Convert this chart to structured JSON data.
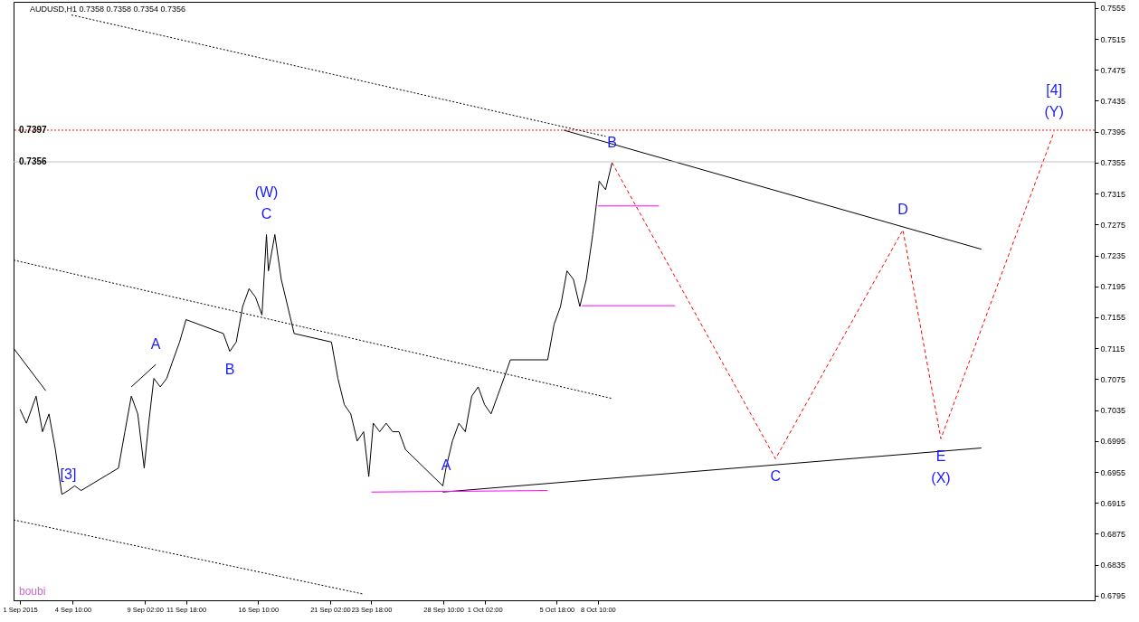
{
  "chart_data": {
    "type": "line",
    "title": "AUDUSD,H1  0.7358 0.7358 0.7354 0.7356",
    "xlim": [
      "2015-08-31T14:00",
      "2015-11-09T14:00"
    ],
    "xticks": [
      {
        "value": "2015-09-01T00:00",
        "label": "1 Sep 2015"
      },
      {
        "value": "2015-09-04T10:00",
        "label": "4 Sep 10:00"
      },
      {
        "value": "2015-09-09T02:00",
        "label": "9 Sep 02:00"
      },
      {
        "value": "2015-09-11T18:00",
        "label": "11 Sep 18:00"
      },
      {
        "value": "2015-09-16T10:00",
        "label": "16 Sep 10:00"
      },
      {
        "value": "2015-09-21T02:00",
        "label": "21 Sep 02:00"
      },
      {
        "value": "2015-09-23T18:00",
        "label": "23 Sep 18:00"
      },
      {
        "value": "2015-09-28T10:00",
        "label": "28 Sep 10:00"
      },
      {
        "value": "2015-10-01T02:00",
        "label": "1 Oct 02:00"
      },
      {
        "value": "2015-10-05T18:00",
        "label": "5 Oct 18:00"
      },
      {
        "value": "2015-10-08T10:00",
        "label": "8 Oct 10:00"
      }
    ],
    "ylim": [
      0.6789,
      0.7563
    ],
    "yticks": [
      0.6795,
      0.6835,
      0.6875,
      0.6915,
      0.6955,
      0.6995,
      0.7035,
      0.7075,
      0.7115,
      0.7155,
      0.7195,
      0.7235,
      0.7275,
      0.7315,
      0.7355,
      0.7395,
      0.7435,
      0.7475,
      0.7515,
      0.7555
    ],
    "grid": false,
    "marker": "none",
    "series": [
      {
        "color": "#000000",
        "line_style": "solid",
        "x": [
          "2015-09-01T00:00",
          "2015-09-01T10:00",
          "2015-09-02T01:00",
          "2015-09-02T11:00",
          "2015-09-02T21:00",
          "2015-09-03T07:00",
          "2015-09-03T17:00",
          "2015-09-04T03:00",
          "2015-09-04T13:00",
          "2015-09-04T23:00",
          "2015-09-07T09:00",
          "2015-09-07T19:00",
          "2015-09-08T05:00",
          "2015-09-08T15:00",
          "2015-09-09T01:00",
          "2015-09-09T08:00",
          "2015-09-09T16:00",
          "2015-09-10T02:00",
          "2015-09-10T12:00",
          "2015-09-10T22:00",
          "2015-09-11T08:00",
          "2015-09-11T18:00",
          "2015-09-14T04:00",
          "2015-09-14T14:00",
          "2015-09-15T00:00",
          "2015-09-15T10:00",
          "2015-09-15T20:00",
          "2015-09-16T06:00",
          "2015-09-16T16:00",
          "2015-09-16T23:00",
          "2015-09-17T02:00",
          "2015-09-17T12:00",
          "2015-09-17T22:00",
          "2015-09-18T08:00",
          "2015-09-18T18:00",
          "2015-09-21T04:00",
          "2015-09-21T14:00",
          "2015-09-22T00:00",
          "2015-09-22T10:00",
          "2015-09-22T20:00",
          "2015-09-23T06:00",
          "2015-09-23T14:00",
          "2015-09-23T21:00",
          "2015-09-24T07:00",
          "2015-09-24T17:00",
          "2015-09-25T03:00",
          "2015-09-25T13:00",
          "2015-09-25T23:00",
          "2015-09-28T09:00",
          "2015-09-28T14:00",
          "2015-09-29T00:00",
          "2015-09-29T10:00",
          "2015-09-29T20:00",
          "2015-09-30T06:00",
          "2015-09-30T16:00",
          "2015-10-01T02:00",
          "2015-10-01T12:00",
          "2015-10-01T22:00",
          "2015-10-02T08:00",
          "2015-10-02T18:00",
          "2015-10-05T04:00",
          "2015-10-05T14:00",
          "2015-10-06T00:00",
          "2015-10-06T10:00",
          "2015-10-06T20:00",
          "2015-10-07T06:00",
          "2015-10-07T16:00",
          "2015-10-08T02:00",
          "2015-10-08T12:00",
          "2015-10-08T22:00",
          "2015-10-09T08:00"
        ],
        "values": [
          0.7036,
          0.7018,
          0.7053,
          0.7007,
          0.703,
          0.6984,
          0.6926,
          0.6931,
          0.6937,
          0.6931,
          0.696,
          0.7007,
          0.7053,
          0.703,
          0.696,
          0.7018,
          0.7076,
          0.7065,
          0.7076,
          0.71,
          0.7123,
          0.7152,
          0.7134,
          0.7111,
          0.7123,
          0.7169,
          0.7192,
          0.7181,
          0.7158,
          0.7262,
          0.7215,
          0.7262,
          0.7204,
          0.7169,
          0.7134,
          0.7123,
          0.7076,
          0.7042,
          0.703,
          0.6995,
          0.7007,
          0.6949,
          0.7018,
          0.7007,
          0.7018,
          0.7007,
          0.7007,
          0.6984,
          0.6937,
          0.696,
          0.6995,
          0.7018,
          0.7007,
          0.7053,
          0.7065,
          0.7042,
          0.703,
          0.7053,
          0.7076,
          0.71,
          0.71,
          0.7146,
          0.7169,
          0.7215,
          0.7204,
          0.7169,
          0.7204,
          0.7262,
          0.7331,
          0.732,
          0.7355
        ]
      },
      {
        "color": "#ff0000",
        "line_style": "dashed",
        "x": [
          "2015-10-09T08:00",
          "2015-10-19T22:00",
          "2015-10-28T04:00",
          "2015-10-30T15:00",
          "2015-11-06T23:00"
        ],
        "values": [
          0.7355,
          0.6972,
          0.7268,
          0.6998,
          0.7395
        ]
      },
      {
        "color": "#000000",
        "line_style": "solid",
        "x": [
          "2015-10-06T05:00",
          "2015-11-02T06:00"
        ],
        "values": [
          0.7397,
          0.7243
        ]
      },
      {
        "color": "#000000",
        "line_style": "solid",
        "x": [
          "2015-09-28T09:00",
          "2015-11-02T06:00"
        ],
        "values": [
          0.6929,
          0.6986
        ]
      },
      {
        "color": "#000000",
        "line_style": "dotted",
        "x": [
          "2015-09-04T08:00",
          "2015-10-08T22:00"
        ],
        "values": [
          0.7546,
          0.7389
        ]
      },
      {
        "color": "#000000",
        "line_style": "dotted",
        "x": [
          "2015-08-31T14:00",
          "2015-10-09T08:00"
        ],
        "values": [
          0.7229,
          0.705
        ]
      },
      {
        "color": "#000000",
        "line_style": "dotted",
        "x": [
          "2015-08-31T14:00",
          "2015-09-23T06:00"
        ],
        "values": [
          0.6893,
          0.6797
        ]
      },
      {
        "color": "#000000",
        "line_style": "solid",
        "x": [
          "2015-08-31T14:00",
          "2015-09-02T16:00"
        ],
        "values": [
          0.7115,
          0.706
        ]
      },
      {
        "color": "#000000",
        "line_style": "solid",
        "x": [
          "2015-09-08T05:00",
          "2015-09-09T19:00"
        ],
        "values": [
          0.7065,
          0.7094
        ]
      },
      {
        "color": "#ff00ff",
        "line_style": "solid",
        "x": [
          "2015-09-23T18:00",
          "2015-10-05T04:00"
        ],
        "values": [
          0.6929,
          0.6931
        ]
      },
      {
        "color": "#ff00ff",
        "line_style": "solid",
        "x": [
          "2015-10-07T09:00",
          "2015-10-13T10:00"
        ],
        "values": [
          0.717,
          0.717
        ]
      },
      {
        "color": "#ff00ff",
        "line_style": "solid",
        "x": [
          "2015-10-08T10:00",
          "2015-10-12T09:00"
        ],
        "values": [
          0.7299,
          0.7299
        ]
      }
    ],
    "ref_lines": [
      {
        "axis": "y",
        "value": 0.7397,
        "label": "0.7397",
        "color": "#ff0000",
        "line_style": "dotted"
      },
      {
        "axis": "y",
        "value": 0.7356,
        "label": "0.7356",
        "color": "#c0c0c0",
        "line_style": "solid"
      }
    ],
    "annotations": [
      {
        "text": "[3]",
        "x": "2015-09-04T03:00",
        "y": 0.6926
      },
      {
        "text": "A",
        "x": "2015-09-09T19:00",
        "y": 0.7094
      },
      {
        "text": "B",
        "x": "2015-09-14T14:00",
        "y": 0.7111
      },
      {
        "text": "C",
        "x": "2015-09-16T23:00",
        "y": 0.7262
      },
      {
        "text": "(W)",
        "x": "2015-09-16T23:00",
        "y": 0.7262
      },
      {
        "text": "A",
        "x": "2015-09-28T14:00",
        "y": 0.6937
      },
      {
        "text": "B",
        "x": "2015-10-09T08:00",
        "y": 0.7355
      },
      {
        "text": "C",
        "x": "2015-10-19T22:00",
        "y": 0.6972
      },
      {
        "text": "D",
        "x": "2015-10-28T04:00",
        "y": 0.7268
      },
      {
        "text": "E",
        "x": "2015-10-30T15:00",
        "y": 0.6998
      },
      {
        "text": "(X)",
        "x": "2015-10-30T15:00",
        "y": 0.6998
      },
      {
        "text": "(Y)",
        "x": "2015-11-06T23:00",
        "y": 0.7395
      },
      {
        "text": "[4]",
        "x": "2015-11-06T23:00",
        "y": 0.7395
      },
      "boubi"
    ]
  }
}
